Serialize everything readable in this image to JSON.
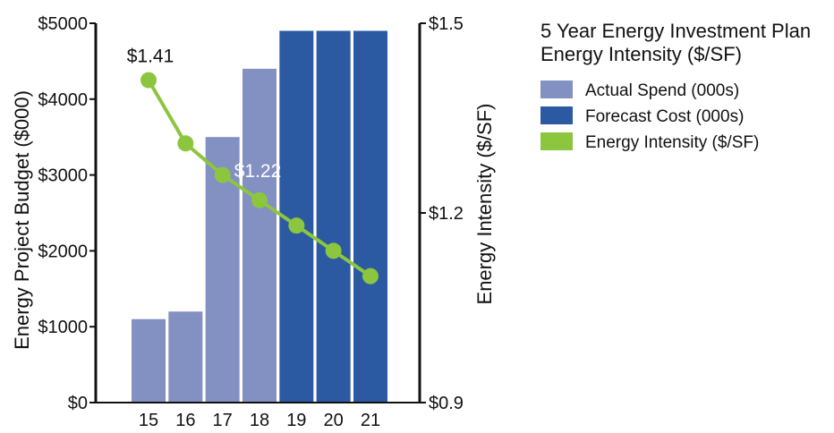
{
  "chart_data": {
    "type": "bar",
    "title": "5 Year Energy Investment Plan",
    "subtitle": "Energy Intensity ($/SF)",
    "categories": [
      "15",
      "16",
      "17",
      "18",
      "19",
      "20",
      "21"
    ],
    "series": [
      {
        "name": "Actual Spend (000s)",
        "type": "bar",
        "axis": "left",
        "color": "#8390c2",
        "values": [
          1100,
          1200,
          3500,
          4400,
          null,
          null,
          null
        ]
      },
      {
        "name": "Forecast Cost (000s)",
        "type": "bar",
        "axis": "left",
        "color": "#2b5aa3",
        "values": [
          null,
          null,
          null,
          null,
          4900,
          4900,
          4900
        ]
      },
      {
        "name": "Energy Intensity ($/SF)",
        "type": "line",
        "axis": "right",
        "color": "#8cc63f",
        "values": [
          1.41,
          1.31,
          1.26,
          1.22,
          1.18,
          1.14,
          1.1
        ]
      }
    ],
    "left_axis": {
      "label": "Energy Project Budget ($000)",
      "ylim": [
        0,
        5000
      ],
      "ticks": [
        0,
        1000,
        2000,
        3000,
        4000,
        5000
      ],
      "tick_labels": [
        "$0",
        "$1000",
        "$2000",
        "$3000",
        "$4000",
        "$5000"
      ]
    },
    "right_axis": {
      "label": "Energy Intensity ($/SF)",
      "ylim": [
        0.9,
        1.5
      ],
      "ticks": [
        0.9,
        1.2,
        1.5
      ],
      "tick_labels": [
        "$0.9",
        "$1.2",
        "$1.5"
      ]
    },
    "annotations": [
      {
        "text": "$1.41",
        "category": "15"
      },
      {
        "text": "$1.22",
        "category": "18"
      }
    ],
    "legend": {
      "position": "right",
      "entries": [
        "Actual Spend (000s)",
        "Forecast Cost (000s)",
        "Energy Intensity ($/SF)"
      ]
    },
    "grid": false
  }
}
